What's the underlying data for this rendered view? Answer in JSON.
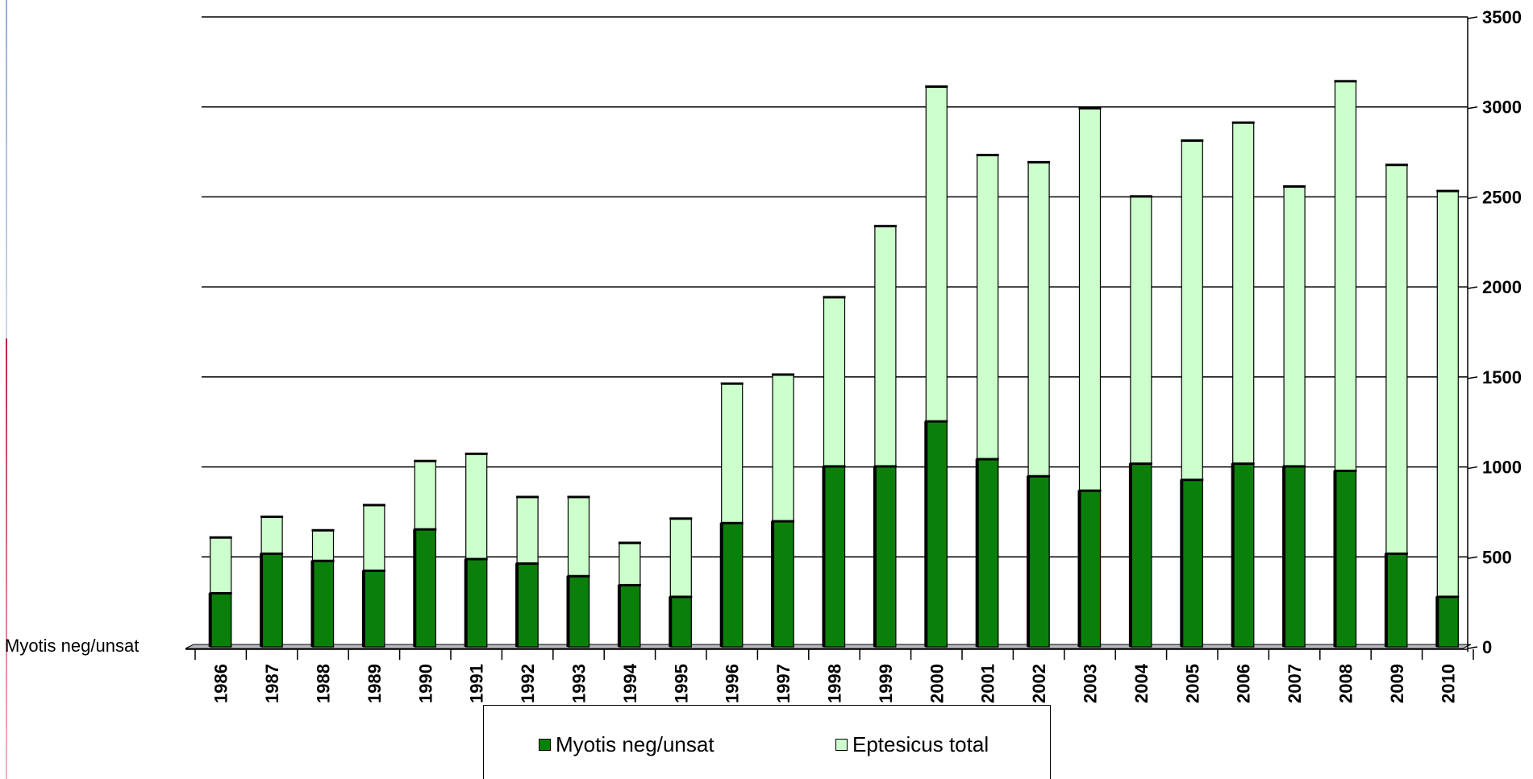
{
  "chart_data": {
    "type": "bar",
    "title": "",
    "xlabel": "",
    "ylabel": "",
    "categories": [
      "1986",
      "1987",
      "1988",
      "1989",
      "1990",
      "1991",
      "1992",
      "1993",
      "1994",
      "1995",
      "1996",
      "1997",
      "1998",
      "1999",
      "2000",
      "2001",
      "2002",
      "2003",
      "2004",
      "2005",
      "2006",
      "2007",
      "2008",
      "2009",
      "2010"
    ],
    "series": [
      {
        "name": "Myotis neg/unsat",
        "color": "#0a800a",
        "values": [
          300,
          520,
          480,
          425,
          655,
          490,
          465,
          395,
          345,
          280,
          690,
          700,
          1005,
          1005,
          1255,
          1045,
          950,
          870,
          1020,
          930,
          1020,
          1005,
          980,
          520,
          280
        ]
      },
      {
        "name": "Eptesicus total",
        "color": "#ccffcc",
        "values": [
          610,
          725,
          650,
          790,
          1035,
          1075,
          835,
          835,
          580,
          715,
          1465,
          1515,
          1945,
          2340,
          3115,
          2735,
          2695,
          2995,
          2505,
          2815,
          2915,
          2560,
          3145,
          2680,
          2535
        ]
      }
    ],
    "yaxis_position": "right",
    "ylim": [
      0,
      3500
    ],
    "yticks": [
      "0",
      "500",
      "1000",
      "1500",
      "2000",
      "2500",
      "3000",
      "3500"
    ],
    "grid": true,
    "legend_position": "bottom",
    "side_label": "Myotis neg/unsat"
  }
}
